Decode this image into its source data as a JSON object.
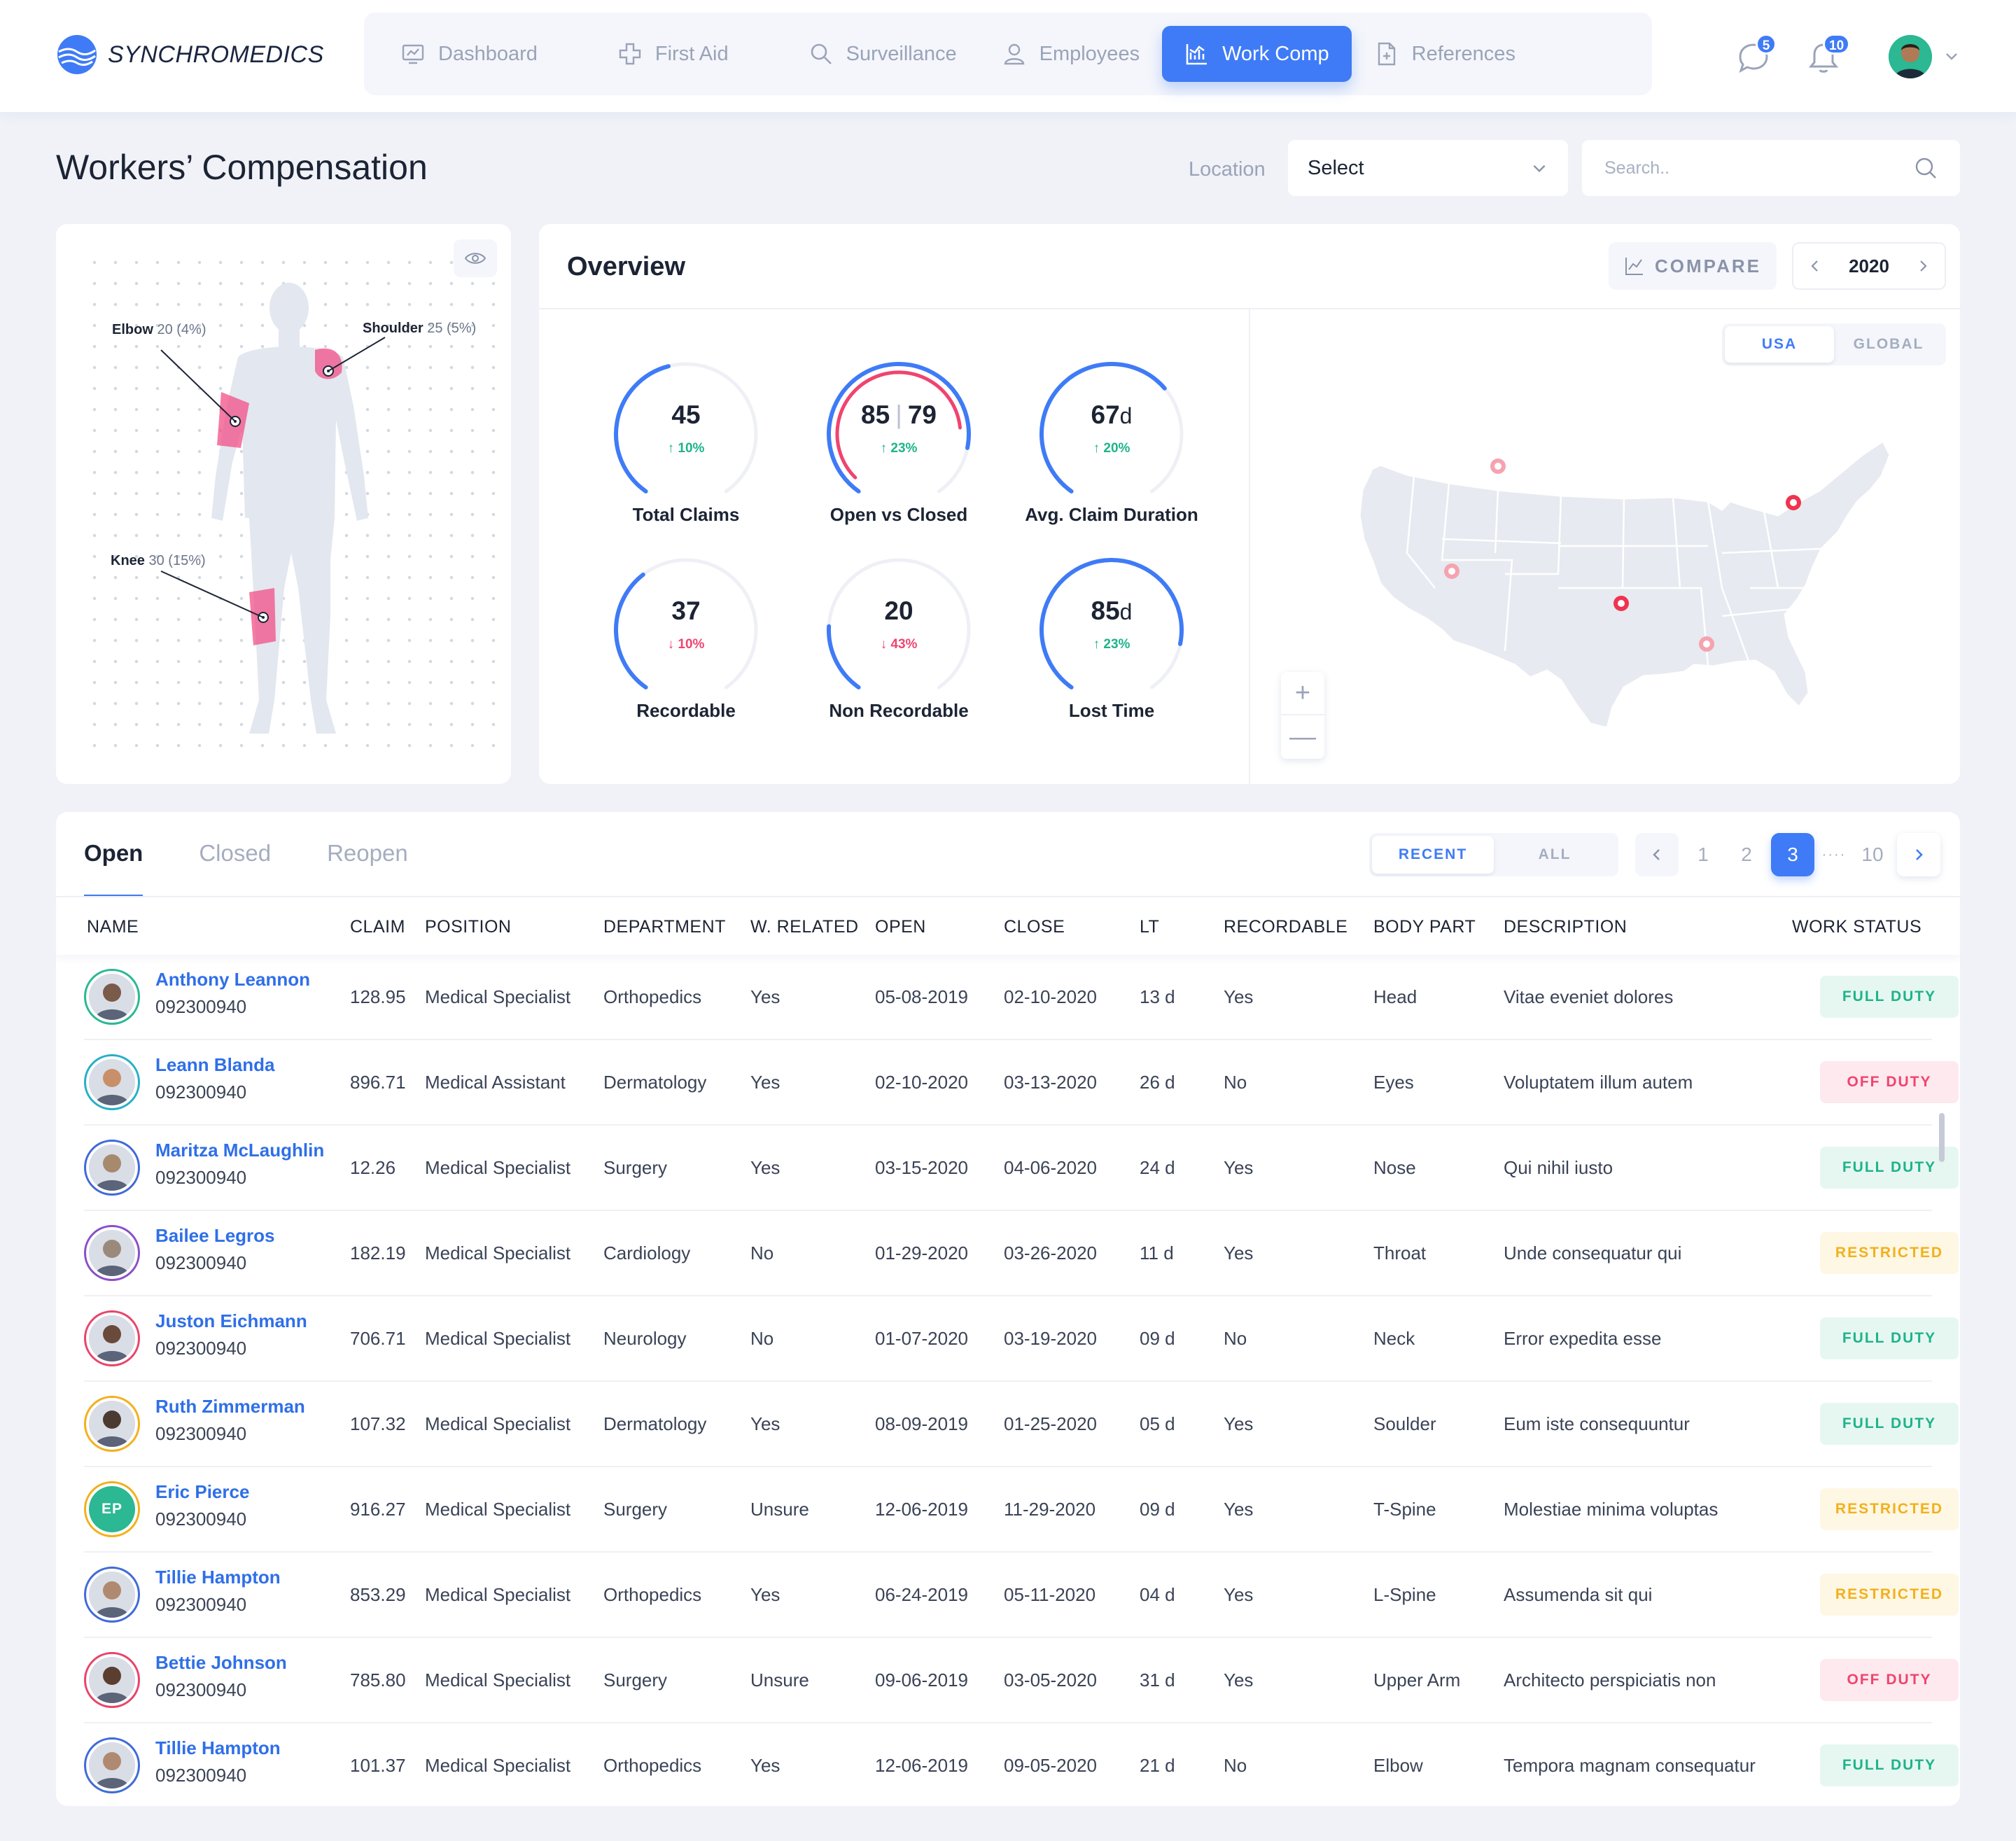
{
  "brand": {
    "name": "SYNCHROMEDICS"
  },
  "nav": {
    "items": [
      {
        "label": "Dashboard",
        "icon": "dashboard-icon"
      },
      {
        "label": "First Aid",
        "icon": "first-aid-icon"
      },
      {
        "label": "Surveillance",
        "icon": "search-icon"
      },
      {
        "label": "Employees",
        "icon": "user-icon"
      },
      {
        "label": "Work Comp",
        "icon": "chart-icon",
        "active": true
      },
      {
        "label": "References",
        "icon": "document-icon"
      }
    ],
    "messages_count": "5",
    "notifications_count": "10"
  },
  "colors": {
    "accent": "#3f7bf6",
    "positive": "#1fb38a",
    "negative": "#f0446f",
    "warning": "#f3b01b"
  },
  "page": {
    "title": "Workers’ Compensation"
  },
  "filters": {
    "location_label": "Location",
    "location_value": "Select",
    "search_placeholder": "Search.."
  },
  "body_map": {
    "injuries": [
      {
        "part": "Elbow",
        "count": "20",
        "pct": "(4%)"
      },
      {
        "part": "Shoulder",
        "count": "25",
        "pct": "(5%)"
      },
      {
        "part": "Knee",
        "count": "30",
        "pct": "(15%)"
      }
    ]
  },
  "overview": {
    "title": "Overview",
    "compare_label": "COMPARE",
    "year": "2020",
    "region_tabs": {
      "usa": "USA",
      "global": "GLOBAL",
      "selected": "USA"
    },
    "metrics": [
      {
        "value": "45",
        "delta": "10%",
        "direction": "up",
        "label": "Total Claims",
        "fill": 0.45
      },
      {
        "value": "85",
        "value2": "79",
        "delta": "23%",
        "direction": "up",
        "label": "Open vs Closed",
        "fill": 0.85
      },
      {
        "value": "67",
        "unit": "d",
        "delta": "20%",
        "direction": "up",
        "label": "Avg. Claim Duration",
        "fill": 0.67
      },
      {
        "value": "37",
        "delta": "10%",
        "direction": "down",
        "label": "Recordable",
        "fill": 0.37
      },
      {
        "value": "20",
        "delta": "43%",
        "direction": "down",
        "label": "Non Recordable",
        "fill": 0.2
      },
      {
        "value": "85",
        "unit": "d",
        "delta": "23%",
        "direction": "up",
        "label": "Lost Time",
        "fill": 0.85
      }
    ],
    "map_zoom_in": "+",
    "map_zoom_out": "—"
  },
  "claims": {
    "tabs": [
      {
        "label": "Open",
        "active": true
      },
      {
        "label": "Closed"
      },
      {
        "label": "Reopen"
      }
    ],
    "range_toggle": {
      "recent": "RECENT",
      "all": "ALL",
      "selected": "RECENT"
    },
    "pagination": {
      "pages": [
        "1",
        "2",
        "3"
      ],
      "current": "3",
      "ellipsis": "····",
      "last": "10"
    },
    "columns": [
      "NAME",
      "CLAIM",
      "POSITION",
      "DEPARTMENT",
      "W. RELATED",
      "OPEN",
      "CLOSE",
      "LT",
      "RECORDABLE",
      "BODY PART",
      "DESCRIPTION",
      "WORK STATUS"
    ],
    "rows": [
      {
        "name": "Anthony Leannon",
        "id": "092300940",
        "claim": "128.95",
        "position": "Medical Specialist",
        "department": "Orthopedics",
        "related": "Yes",
        "open": "05-08-2019",
        "close": "02-10-2020",
        "lt": "13 d",
        "recordable": "Yes",
        "body_part": "Head",
        "description": "Vitae eveniet dolores",
        "status": "FULL DUTY",
        "ring": "#2bb893",
        "av": "#7a5a48"
      },
      {
        "name": "Leann Blanda",
        "id": "092300940",
        "claim": "896.71",
        "position": "Medical Assistant",
        "department": "Dermatology",
        "related": "Yes",
        "open": "02-10-2020",
        "close": "03-13-2020",
        "lt": "26 d",
        "recordable": "No",
        "body_part": "Eyes",
        "description": "Voluptatem illum autem",
        "status": "OFF DUTY",
        "ring": "#27b0c6",
        "av": "#c98f6a"
      },
      {
        "name": "Maritza McLaughlin",
        "id": "092300940",
        "claim": "12.26",
        "position": "Medical Specialist",
        "department": "Surgery",
        "related": "Yes",
        "open": "03-15-2020",
        "close": "04-06-2020",
        "lt": "24 d",
        "recordable": "Yes",
        "body_part": "Nose",
        "description": "Qui nihil iusto",
        "status": "FULL DUTY",
        "ring": "#3f6ad8",
        "av": "#a7896e"
      },
      {
        "name": "Bailee Legros",
        "id": "092300940",
        "claim": "182.19",
        "position": "Medical Specialist",
        "department": "Cardiology",
        "related": "No",
        "open": "01-29-2020",
        "close": "03-26-2020",
        "lt": "11 d",
        "recordable": "Yes",
        "body_part": "Throat",
        "description": "Unde consequatur qui",
        "status": "RESTRICTED",
        "ring": "#8a4fc9",
        "av": "#9a8a7c"
      },
      {
        "name": "Juston Eichmann",
        "id": "092300940",
        "claim": "706.71",
        "position": "Medical Specialist",
        "department": " Neurology",
        "related": "No",
        "open": "01-07-2020",
        "close": "03-19-2020",
        "lt": "09 d",
        "recordable": "No",
        "body_part": "Neck",
        "description": "Error expedita esse",
        "status": "FULL DUTY",
        "ring": "#e8456b",
        "av": "#6a4a3a"
      },
      {
        "name": "Ruth Zimmerman",
        "id": "092300940",
        "claim": "107.32",
        "position": "Medical Specialist",
        "department": "Dermatology",
        "related": "Yes",
        "open": "08-09-2019",
        "close": "01-25-2020",
        "lt": "05 d",
        "recordable": "Yes",
        "body_part": "Soulder",
        "description": "Eum iste consequuntur",
        "status": "FULL DUTY",
        "ring": "#f3b01b",
        "av": "#4a3a30"
      },
      {
        "name": "Eric Pierce",
        "id": "092300940",
        "claim": "916.27",
        "position": "Medical Specialist",
        "department": "Surgery",
        "related": "Unsure",
        "open": "12-06-2019",
        "close": "11-29-2020",
        "lt": "09 d",
        "recordable": "Yes",
        "body_part": "T-Spine",
        "description": "Molestiae minima voluptas",
        "status": "RESTRICTED",
        "ring": "#f3b01b",
        "av": "#2bb893",
        "initials": "EP"
      },
      {
        "name": "Tillie Hampton",
        "id": "092300940",
        "claim": "853.29",
        "position": "Medical Specialist",
        "department": "Orthopedics",
        "related": "Yes",
        "open": "06-24-2019",
        "close": "05-11-2020",
        "lt": "04 d",
        "recordable": "Yes",
        "body_part": "L-Spine",
        "description": "Assumenda sit qui",
        "status": "RESTRICTED",
        "ring": "#3f6ad8",
        "av": "#b08a70"
      },
      {
        "name": "Bettie Johnson",
        "id": "092300940",
        "claim": "785.80",
        "position": "Medical Specialist",
        "department": "Surgery",
        "related": "Unsure",
        "open": "09-06-2019",
        "close": "03-05-2020",
        "lt": "31 d",
        "recordable": "Yes",
        "body_part": "Upper Arm",
        "description": "Architecto perspiciatis non",
        "status": "OFF DUTY",
        "ring": "#e8456b",
        "av": "#5a3e30"
      },
      {
        "name": "Tillie Hampton",
        "id": "092300940",
        "claim": "101.37",
        "position": "Medical Specialist",
        "department": "Orthopedics",
        "related": "Yes",
        "open": "12-06-2019",
        "close": "09-05-2020",
        "lt": "21 d",
        "recordable": "No",
        "body_part": "Elbow",
        "description": "Tempora magnam consequatur",
        "status": "FULL DUTY",
        "ring": "#3f6ad8",
        "av": "#b08a70"
      }
    ]
  }
}
